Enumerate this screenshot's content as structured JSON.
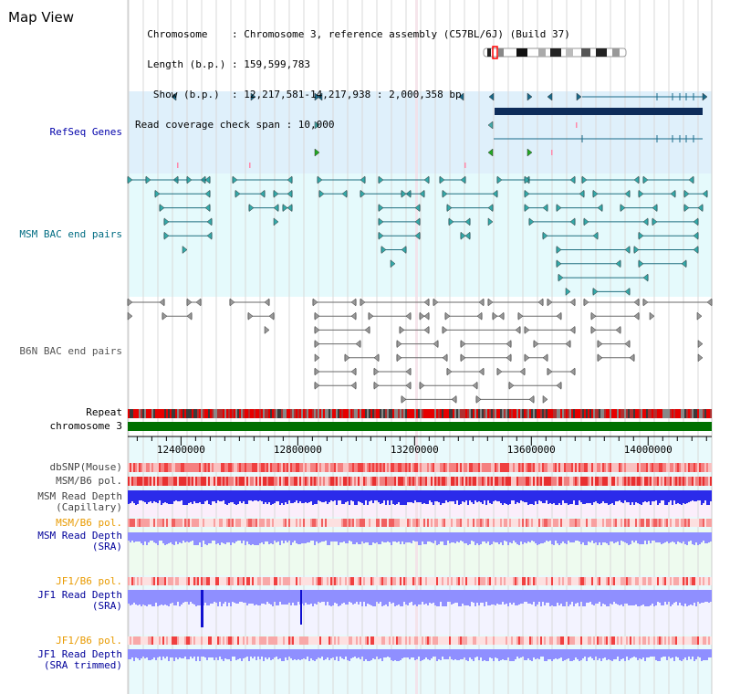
{
  "page": {
    "title": "Map View"
  },
  "header": {
    "lines": [
      "  Chromosome    : Chromosome 3, reference assembly (C57BL/6J) (Build 37)",
      "  Length (b.p.) : 159,599,783",
      "   Show (b.p.)  : 12,217,581-14,217,938 : 2,000,358 bp",
      "Read coverage check span : 10,000"
    ]
  },
  "view": {
    "start": 12217581,
    "end": 14217938
  },
  "tracks": {
    "refseq": "RefSeq Genes",
    "msm_bac": "MSM BAC end pairs",
    "b6n_bac": "B6N BAC end pairs",
    "repeat": "Repeat",
    "chromosome": "chromosome 3",
    "dbsnp": "dbSNP(Mouse)",
    "msm_b6_pol": "MSM/B6 pol.",
    "msm_depth_cap": "MSM Read Depth\n(Capillary)",
    "msm_b6_pol2": "MSM/B6 pol.",
    "msm_depth_sra": "MSM Read Depth\n(SRA)",
    "jf1_b6_pol": "JF1/B6 pol.",
    "jf1_depth_sra": "JF1 Read Depth\n(SRA)",
    "jf1_b6_pol2": "JF1/B6 pol.",
    "jf1_depth_trim": "JF1 Read Depth\n(SRA trimmed)"
  },
  "axis": {
    "ticks": [
      12400000,
      12800000,
      13200000,
      13600000,
      14000000
    ]
  },
  "colors": {
    "refseq_bg": "#dff0fb",
    "msm_bg": "#e5fafc",
    "b6n_bg": "#ffffff",
    "refseq_label": "#0000aa",
    "msm_label": "#006c82",
    "b6n_label": "#555555",
    "orange_label": "#e89a00",
    "blue_label": "#00009a",
    "chromosome_bar": "#007000",
    "depth_blue": "#3a3aff",
    "depth_light": "#8f8fff"
  }
}
